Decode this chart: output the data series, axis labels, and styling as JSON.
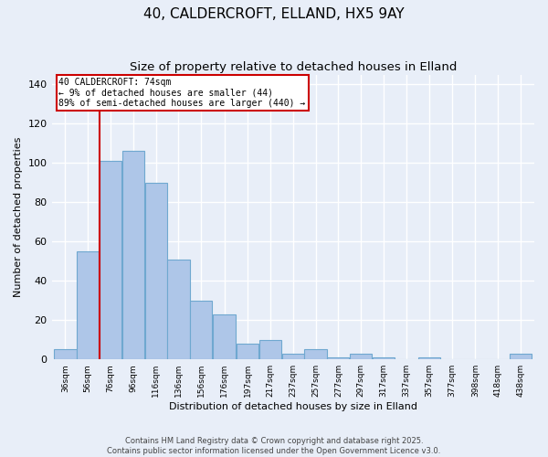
{
  "title": "40, CALDERCROFT, ELLAND, HX5 9AY",
  "subtitle": "Size of property relative to detached houses in Elland",
  "xlabel": "Distribution of detached houses by size in Elland",
  "ylabel": "Number of detached properties",
  "bar_left_edges": [
    36,
    56,
    76,
    96,
    116,
    136,
    156,
    176,
    197,
    217,
    237,
    257,
    277,
    297,
    317,
    337,
    357,
    377,
    398,
    418,
    438
  ],
  "bar_widths": [
    20,
    20,
    20,
    20,
    20,
    20,
    20,
    21,
    20,
    20,
    20,
    20,
    20,
    20,
    20,
    20,
    20,
    21,
    20,
    20,
    20
  ],
  "bar_heights": [
    5,
    55,
    101,
    106,
    90,
    51,
    30,
    23,
    8,
    10,
    3,
    5,
    1,
    3,
    1,
    0,
    1,
    0,
    0,
    0,
    3
  ],
  "bar_color": "#aec6e8",
  "bar_edge_color": "#6fa8d0",
  "bg_color": "#e8eef8",
  "grid_color": "#ffffff",
  "ref_line_x": 76,
  "ref_line_color": "#cc0000",
  "annotation_text": "40 CALDERCROFT: 74sqm\n← 9% of detached houses are smaller (44)\n89% of semi-detached houses are larger (440) →",
  "annotation_box_color": "#cc0000",
  "ylim": [
    0,
    145
  ],
  "yticks": [
    0,
    20,
    40,
    60,
    80,
    100,
    120,
    140
  ],
  "footer_line1": "Contains HM Land Registry data © Crown copyright and database right 2025.",
  "footer_line2": "Contains public sector information licensed under the Open Government Licence v3.0.",
  "title_fontsize": 11,
  "subtitle_fontsize": 9.5
}
